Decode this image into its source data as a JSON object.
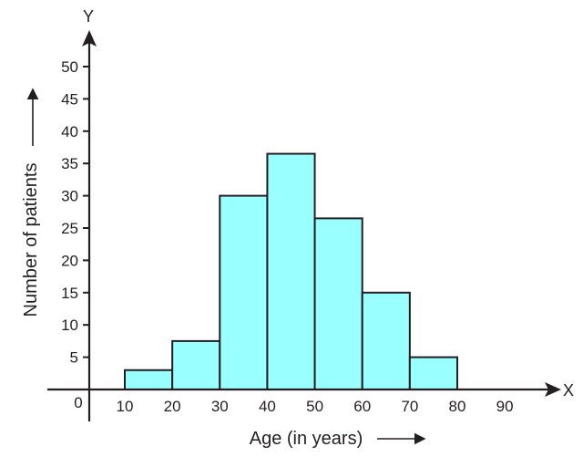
{
  "chart_data": {
    "type": "bar",
    "subtype": "histogram",
    "bins": [
      {
        "from": 10,
        "to": 20,
        "value": 3
      },
      {
        "from": 20,
        "to": 30,
        "value": 7.5
      },
      {
        "from": 30,
        "to": 40,
        "value": 30
      },
      {
        "from": 40,
        "to": 50,
        "value": 36.5
      },
      {
        "from": 50,
        "to": 60,
        "value": 26.5
      },
      {
        "from": 60,
        "to": 70,
        "value": 15
      },
      {
        "from": 70,
        "to": 80,
        "value": 5
      }
    ],
    "x_ticks": [
      "10",
      "20",
      "30",
      "40",
      "50",
      "60",
      "70",
      "80",
      "90"
    ],
    "y_ticks": [
      "5",
      "10",
      "15",
      "20",
      "25",
      "30",
      "35",
      "40",
      "45",
      "50"
    ],
    "origin_label": "0",
    "x_axis_letter": "X",
    "y_axis_letter": "Y",
    "xlabel": "Age (in years)",
    "ylabel": "Number of patients",
    "xlim": [
      0,
      90
    ],
    "ylim": [
      0,
      50
    ],
    "bar_color": "#99ffff",
    "edge_color": "#231f20",
    "grid": false
  }
}
